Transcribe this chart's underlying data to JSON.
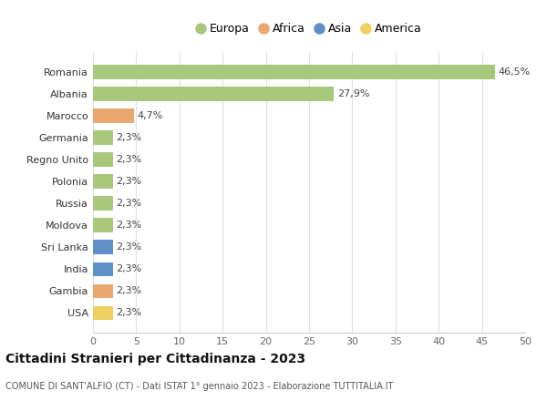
{
  "countries": [
    "Romania",
    "Albania",
    "Marocco",
    "Germania",
    "Regno Unito",
    "Polonia",
    "Russia",
    "Moldova",
    "Sri Lanka",
    "India",
    "Gambia",
    "USA"
  ],
  "values": [
    46.5,
    27.9,
    4.7,
    2.3,
    2.3,
    2.3,
    2.3,
    2.3,
    2.3,
    2.3,
    2.3,
    2.3
  ],
  "labels": [
    "46,5%",
    "27,9%",
    "4,7%",
    "2,3%",
    "2,3%",
    "2,3%",
    "2,3%",
    "2,3%",
    "2,3%",
    "2,3%",
    "2,3%",
    "2,3%"
  ],
  "continents": [
    "Europa",
    "Europa",
    "Africa",
    "Europa",
    "Europa",
    "Europa",
    "Europa",
    "Europa",
    "Asia",
    "Asia",
    "Africa",
    "America"
  ],
  "colors": {
    "Europa": "#a8c87c",
    "Africa": "#e8a870",
    "Asia": "#6090c8",
    "America": "#f0d060"
  },
  "legend_order": [
    "Europa",
    "Africa",
    "Asia",
    "America"
  ],
  "xlim": [
    0,
    50
  ],
  "xticks": [
    0,
    5,
    10,
    15,
    20,
    25,
    30,
    35,
    40,
    45,
    50
  ],
  "title": "Cittadini Stranieri per Cittadinanza - 2023",
  "subtitle": "COMUNE DI SANT'ALFIO (CT) - Dati ISTAT 1° gennaio 2023 - Elaborazione TUTTITALIA.IT",
  "background_color": "#ffffff",
  "grid_color": "#e0e0e0",
  "bar_height": 0.65,
  "label_fontsize": 8,
  "ytick_fontsize": 8,
  "xtick_fontsize": 8
}
